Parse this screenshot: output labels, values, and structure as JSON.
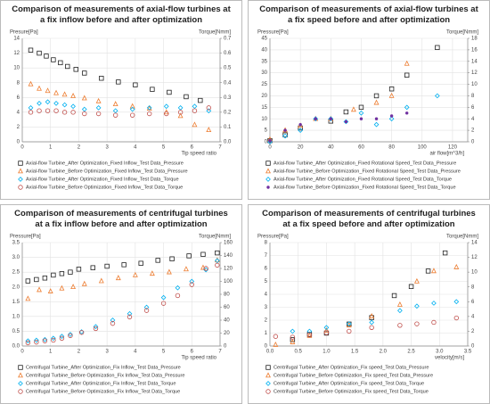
{
  "chart_data": [
    {
      "type": "scatter",
      "title": "Comparison of measurements of axial-flow turbines at a fix inflow before and after optimization",
      "y_label": "Presure[Pa]",
      "y2_label": "Torque[Nmm]",
      "x_label": "Tip speed ratio",
      "grid": true,
      "xlim": [
        0,
        7
      ],
      "xticks": [
        0,
        1,
        2,
        3,
        4,
        5,
        6,
        7
      ],
      "ylim": [
        0,
        14
      ],
      "yticks": [
        0,
        2,
        4,
        6,
        8,
        10,
        12,
        14
      ],
      "y2lim": [
        0,
        0.7
      ],
      "y2ticks": [
        {
          "value": 0,
          "label": "0.0"
        },
        0.1,
        0.2,
        0.3,
        0.4,
        0.5,
        0.6,
        0.7
      ],
      "series": [
        {
          "name": "Axial-flow Turbine_After Optimization_Fixed Inflow_Test Data_Pressure",
          "color": "#222222",
          "marker": "square",
          "x": [
            0.3,
            0.6,
            0.85,
            1.1,
            1.35,
            1.6,
            1.9,
            2.2,
            2.8,
            3.4,
            4.0,
            4.6,
            5.2,
            5.8,
            6.3
          ],
          "values": [
            12.4,
            12.0,
            11.6,
            11.1,
            10.7,
            10.2,
            9.8,
            9.3,
            8.6,
            8.1,
            7.7,
            7.1,
            6.7,
            6.1,
            5.6
          ]
        },
        {
          "name": "Axial-flow Turbine_Before Optimization_Fixed Inflow_Test Data_Pressure",
          "color": "#ed7d31",
          "marker": "triangle",
          "x": [
            0.3,
            0.6,
            0.9,
            1.2,
            1.5,
            1.8,
            2.2,
            2.7,
            3.3,
            3.9,
            4.5,
            5.1,
            5.6,
            6.1,
            6.6
          ],
          "values": [
            7.8,
            7.2,
            6.9,
            6.6,
            6.4,
            6.2,
            5.9,
            5.5,
            5.1,
            4.8,
            4.5,
            4.0,
            3.5,
            2.3,
            1.6
          ]
        },
        {
          "name": "Axial-flow Turbine_After Optimization_Fixed Inflow_Test Data_Torque",
          "color": "#00b0f0",
          "marker": "diamond",
          "axis": "y2",
          "x": [
            0.3,
            0.6,
            0.9,
            1.2,
            1.5,
            1.8,
            2.2,
            2.7,
            3.3,
            3.9,
            4.5,
            5.1,
            5.6,
            6.1,
            6.6
          ],
          "values": [
            0.23,
            0.26,
            0.27,
            0.26,
            0.25,
            0.24,
            0.22,
            0.23,
            0.21,
            0.22,
            0.23,
            0.24,
            0.23,
            0.24,
            0.21
          ]
        },
        {
          "name": "Axial-flow Turbine_Before Optimization_Fixed Inflow_Test Data_Torque",
          "color": "#c0504d",
          "marker": "circle",
          "axis": "y2",
          "x": [
            0.3,
            0.6,
            0.9,
            1.2,
            1.5,
            1.8,
            2.2,
            2.7,
            3.3,
            3.9,
            4.5,
            5.1,
            5.6,
            6.1,
            6.6
          ],
          "values": [
            0.2,
            0.21,
            0.21,
            0.21,
            0.2,
            0.2,
            0.19,
            0.19,
            0.18,
            0.18,
            0.19,
            0.19,
            0.2,
            0.21,
            0.23
          ]
        }
      ]
    },
    {
      "type": "scatter",
      "title": "Comparison of measurements of axial-flow turbines at a fix speed before and after optimization",
      "y_label": "Pressure[Pa]",
      "y2_label": "Torque[Nmm]",
      "x_label": "air flow[m^3/h]",
      "grid": true,
      "xlim": [
        0,
        130
      ],
      "xticks": [
        0,
        20,
        40,
        60,
        80,
        100,
        120
      ],
      "ylim": [
        0,
        45
      ],
      "yticks": [
        0,
        5,
        10,
        15,
        20,
        25,
        30,
        35,
        40,
        45
      ],
      "y2lim": [
        0,
        18
      ],
      "y2ticks": [
        0,
        2,
        4,
        6,
        8,
        10,
        12,
        14,
        16,
        18
      ],
      "series": [
        {
          "name": "Axial-flow Turbine_After Optimization_Fixed Rotational Speed_Test Data_Pressure",
          "color": "#222222",
          "marker": "square",
          "x": [
            0,
            10,
            20,
            40,
            50,
            60,
            70,
            80,
            90,
            110
          ],
          "values": [
            0.5,
            3,
            6,
            9,
            13,
            15,
            20,
            23,
            29,
            41
          ]
        },
        {
          "name": "Axial-flow Turbine_Before Optimization_Fixed Rotational Speed_Test Data_Pressure",
          "color": "#ed7d31",
          "marker": "triangle",
          "x": [
            0,
            10,
            20,
            30,
            40,
            55,
            70,
            80,
            90
          ],
          "values": [
            1,
            5,
            7,
            10,
            10,
            14,
            17,
            20,
            34
          ]
        },
        {
          "name": "Axial-flow Turbine_After Optimization_Fixed Rotational Speed_Test Data_Torque",
          "color": "#00b0f0",
          "marker": "diamond",
          "axis": "y2",
          "x": [
            0,
            10,
            20,
            30,
            40,
            50,
            60,
            70,
            80,
            90,
            110
          ],
          "values": [
            0,
            1,
            2,
            4,
            4,
            3.5,
            5,
            3,
            4,
            6,
            8
          ]
        },
        {
          "name": "Axial-flow Turbine_Before Optimization_Fixed Rotational Speed_Test Data_Torque",
          "color": "#7030a0",
          "marker": "dot",
          "axis": "y2",
          "x": [
            0,
            10,
            20,
            30,
            40,
            50,
            60,
            70,
            80,
            90
          ],
          "values": [
            0.2,
            2,
            3,
            4,
            4,
            3.5,
            4,
            4,
            4.5,
            5
          ]
        }
      ]
    },
    {
      "type": "scatter",
      "title": "Comparison of measurements of centrifugal turbines at a fix inflow before and after optimization",
      "y_label": "Pressure[Pa]",
      "y2_label": "Torque[Nmm]",
      "x_label": "Tip speed ratio",
      "grid": true,
      "xlim": [
        0,
        7
      ],
      "xticks": [
        0,
        1,
        2,
        3,
        4,
        5,
        6,
        7
      ],
      "ylim": [
        0,
        3.5
      ],
      "yticks": [
        {
          "value": 0,
          "label": "0.0"
        },
        0.5,
        {
          "value": 1,
          "label": "1.0"
        },
        1.5,
        {
          "value": 2,
          "label": "2.0"
        },
        2.5,
        {
          "value": 3,
          "label": "3.0"
        },
        3.5
      ],
      "y2lim": [
        0,
        160
      ],
      "y2ticks": [
        0,
        20,
        40,
        60,
        80,
        100,
        120,
        140,
        160
      ],
      "series": [
        {
          "name": "Centrifugal Turbine_After Optimization_Fix Inflow_Test Data_Pressure",
          "color": "#222222",
          "marker": "square",
          "x": [
            0.2,
            0.5,
            0.8,
            1.1,
            1.4,
            1.7,
            2.0,
            2.5,
            3.0,
            3.6,
            4.2,
            4.8,
            5.3,
            5.9,
            6.4,
            6.9
          ],
          "values": [
            2.2,
            2.25,
            2.3,
            2.4,
            2.45,
            2.5,
            2.6,
            2.65,
            2.7,
            2.75,
            2.8,
            2.9,
            2.95,
            3.05,
            3.1,
            3.15
          ]
        },
        {
          "name": "Centrifugal Turbine_Before Optimization_Fix Inflow_Test Data_Pressure",
          "color": "#ed7d31",
          "marker": "triangle",
          "x": [
            0.2,
            0.6,
            1.0,
            1.4,
            1.8,
            2.2,
            2.8,
            3.4,
            4.0,
            4.6,
            5.2,
            5.8,
            6.4,
            6.9
          ],
          "values": [
            1.6,
            1.9,
            1.85,
            1.95,
            2.0,
            2.1,
            2.2,
            2.3,
            2.4,
            2.45,
            2.5,
            2.6,
            2.65,
            2.9
          ]
        },
        {
          "name": "Centrifugal Turbine_After Optimization_Fix Inflow_Test Data_Torque",
          "color": "#00b0f0",
          "marker": "diamond",
          "axis": "y2",
          "x": [
            0.2,
            0.5,
            0.8,
            1.1,
            1.4,
            1.7,
            2.1,
            2.6,
            3.2,
            3.8,
            4.4,
            5.0,
            5.5,
            6.0,
            6.5,
            6.9
          ],
          "values": [
            8,
            9,
            10,
            12,
            15,
            18,
            22,
            30,
            40,
            50,
            60,
            75,
            90,
            100,
            118,
            132
          ]
        },
        {
          "name": "Centrifugal Turbine_Before Optimization_Fix Inflow_Test Data_Torque",
          "color": "#c0504d",
          "marker": "circle",
          "axis": "y2",
          "x": [
            0.2,
            0.5,
            0.8,
            1.1,
            1.4,
            1.7,
            2.1,
            2.6,
            3.2,
            3.8,
            4.4,
            5.0,
            5.5,
            6.0,
            6.5,
            6.9
          ],
          "values": [
            5,
            6,
            8,
            9,
            12,
            16,
            21,
            27,
            35,
            45,
            55,
            66,
            78,
            95,
            120,
            125
          ]
        }
      ]
    },
    {
      "type": "scatter",
      "title": "Comparison of measurements of centrifugal turbines at a fix speed before and after optimization",
      "y_label": "Pressure[Pa]",
      "y2_label": "Torque[Nmm]",
      "x_label": "velocity[m/s]",
      "grid": true,
      "xlim": [
        0,
        3.5
      ],
      "xticks": [
        {
          "value": 0,
          "label": "0.0"
        },
        0.5,
        {
          "value": 1,
          "label": "1.0"
        },
        1.5,
        {
          "value": 2,
          "label": "2.0"
        },
        2.5,
        {
          "value": 3,
          "label": "3.0"
        },
        3.5
      ],
      "ylim": [
        0,
        8
      ],
      "yticks": [
        0,
        1,
        2,
        3,
        4,
        5,
        6,
        7,
        8
      ],
      "y2lim": [
        0,
        14
      ],
      "y2ticks": [
        0,
        2,
        4,
        6,
        8,
        10,
        12,
        14
      ],
      "series": [
        {
          "name": "Centrifugal Turbine_After Optimization_Fix speed_Test Data_Pressure",
          "color": "#222222",
          "marker": "square",
          "x": [
            0.4,
            0.7,
            1.0,
            1.4,
            1.8,
            2.2,
            2.5,
            2.8,
            3.1
          ],
          "values": [
            0.5,
            0.9,
            1.0,
            1.7,
            2.2,
            3.9,
            4.6,
            5.8,
            7.2
          ]
        },
        {
          "name": "Centrifugal Turbine_Before Optimization_Fix speed_Test Data_Pressure",
          "color": "#ed7d31",
          "marker": "triangle",
          "x": [
            0.1,
            0.4,
            0.7,
            1.0,
            1.4,
            1.8,
            2.3,
            2.6,
            2.9,
            3.3
          ],
          "values": [
            0.1,
            0.3,
            0.8,
            1.2,
            1.6,
            2.3,
            3.2,
            5.0,
            5.8,
            6.1
          ]
        },
        {
          "name": "Centrifugal Turbine_After Optimization_Fix speed_Test Data_Torque",
          "color": "#00b0f0",
          "marker": "diamond",
          "axis": "y2",
          "x": [
            0.4,
            0.7,
            1.0,
            1.4,
            1.8,
            2.3,
            2.6,
            2.9,
            3.3
          ],
          "values": [
            2,
            2,
            2.5,
            3,
            3.2,
            4.8,
            5.4,
            5.8,
            6
          ]
        },
        {
          "name": "Centrifugal Turbine_Before Optimization_Fix speed_Test Data_Torque",
          "color": "#c0504d",
          "marker": "circle",
          "axis": "y2",
          "x": [
            0.1,
            0.4,
            0.7,
            1.0,
            1.4,
            1.8,
            2.3,
            2.6,
            2.9,
            3.3
          ],
          "values": [
            1.3,
            1.2,
            1.5,
            1.8,
            2,
            2.5,
            2.8,
            3,
            3.2,
            3.8
          ]
        }
      ]
    }
  ]
}
